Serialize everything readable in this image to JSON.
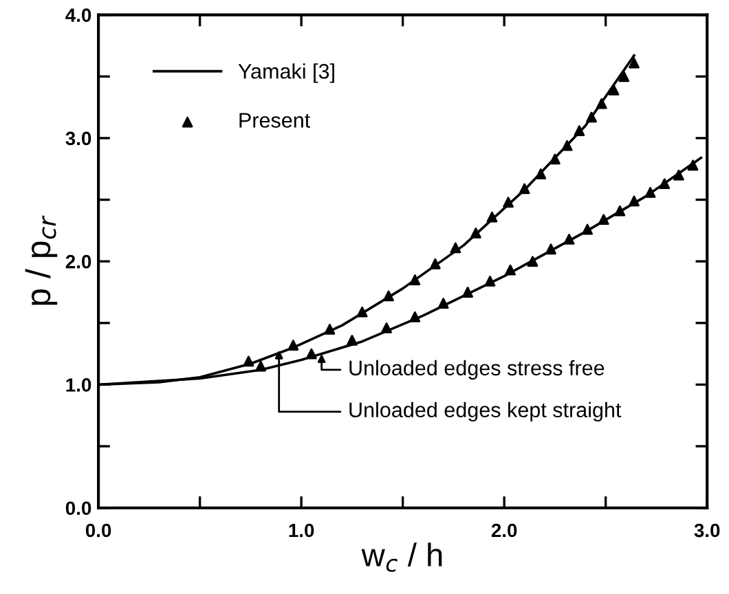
{
  "chart_data": {
    "type": "line",
    "xlabel": "w$_{c}$ / h",
    "ylabel": "p / p$_{cr}$",
    "xlim": [
      0,
      3
    ],
    "ylim": [
      0,
      4
    ],
    "xticks": [
      {
        "value": 0,
        "label": "0.0"
      },
      {
        "value": 0.5,
        "label": null
      },
      {
        "value": 1,
        "label": "1.0"
      },
      {
        "value": 1.5,
        "label": null
      },
      {
        "value": 2,
        "label": "2.0"
      },
      {
        "value": 2.5,
        "label": null
      },
      {
        "value": 3,
        "label": "3.0"
      }
    ],
    "yticks": [
      {
        "value": 0,
        "label": "0.0"
      },
      {
        "value": 0.5,
        "label": null
      },
      {
        "value": 1,
        "label": "1.0"
      },
      {
        "value": 1.5,
        "label": null
      },
      {
        "value": 2,
        "label": "2.0"
      },
      {
        "value": 2.5,
        "label": null
      },
      {
        "value": 3,
        "label": "3.0"
      },
      {
        "value": 3.5,
        "label": null
      },
      {
        "value": 4,
        "label": "4.0"
      }
    ],
    "grid": false,
    "legend": "top left",
    "series": [
      {
        "name": "Yamaki [3]",
        "color": "#000000",
        "marker": "none",
        "x": [
          0,
          0.3,
          0.5,
          0.75,
          0.96,
          1.2,
          1.5,
          1.8,
          2.1,
          2.4,
          2.64
        ],
        "values": [
          1.0,
          1.02,
          1.06,
          1.17,
          1.3,
          1.48,
          1.78,
          2.13,
          2.58,
          3.1,
          3.67
        ]
      },
      {
        "color": "#000000",
        "marker": "none",
        "x": [
          0,
          0.5,
          0.8,
          1.0,
          1.3,
          1.6,
          2.0,
          2.4,
          2.7,
          2.97
        ],
        "values": [
          1.0,
          1.05,
          1.12,
          1.2,
          1.35,
          1.56,
          1.88,
          2.24,
          2.53,
          2.84
        ]
      },
      {
        "name": "Present",
        "type": "scatter",
        "color": "#000000",
        "marker": "triangle",
        "x": [
          0.74,
          0.96,
          1.14,
          1.3,
          1.43,
          1.56,
          1.66,
          1.76,
          1.86,
          1.94,
          2.02,
          2.1,
          2.18,
          2.25,
          2.31,
          2.37,
          2.43,
          2.48,
          2.54,
          2.59,
          2.64
        ],
        "values": [
          1.19,
          1.32,
          1.45,
          1.59,
          1.72,
          1.85,
          1.98,
          2.11,
          2.23,
          2.36,
          2.48,
          2.59,
          2.71,
          2.83,
          2.94,
          3.06,
          3.17,
          3.28,
          3.39,
          3.5,
          3.61
        ]
      },
      {
        "type": "scatter",
        "color": "#000000",
        "marker": "triangle",
        "x": [
          0.8,
          1.05,
          1.25,
          1.42,
          1.56,
          1.7,
          1.82,
          1.93,
          2.03,
          2.14,
          2.23,
          2.32,
          2.41,
          2.49,
          2.57,
          2.64,
          2.72,
          2.79,
          2.86,
          2.93
        ],
        "values": [
          1.15,
          1.25,
          1.36,
          1.46,
          1.55,
          1.66,
          1.75,
          1.84,
          1.93,
          2.0,
          2.1,
          2.18,
          2.26,
          2.34,
          2.41,
          2.49,
          2.56,
          2.63,
          2.7,
          2.78
        ]
      }
    ],
    "annotations": [
      {
        "text": "Unloaded edges stress free",
        "x": 1.1,
        "y": 1.25
      },
      {
        "text": "Unloaded edges kept straight",
        "x": 0.89,
        "y": 1.28
      }
    ]
  }
}
